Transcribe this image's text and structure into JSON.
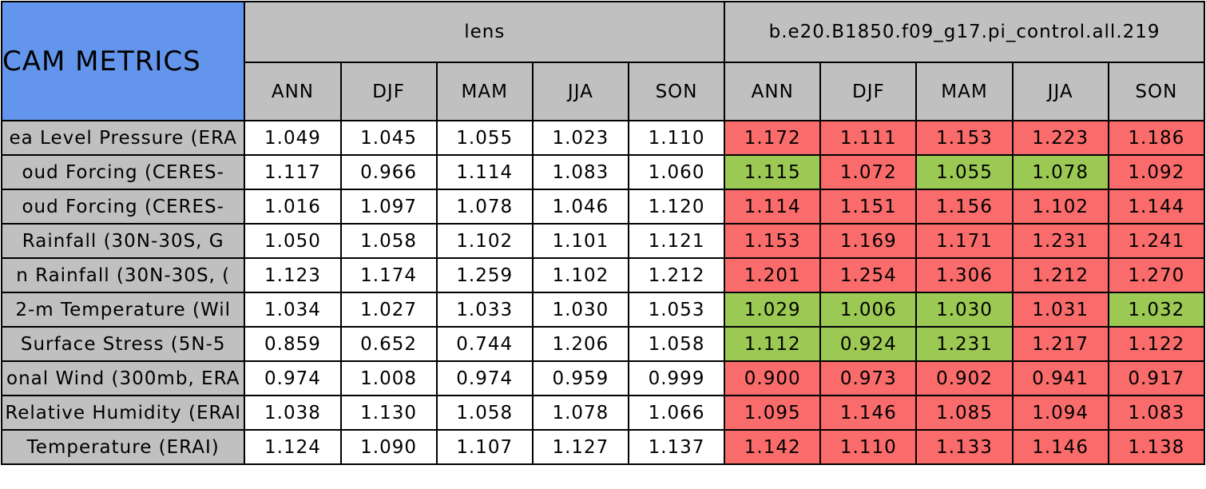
{
  "table": {
    "corner": "CAM METRICS",
    "groups": [
      "lens",
      "b.e20.B1850.f09_g17.pi_control.all.219"
    ],
    "seasons": [
      "ANN",
      "DJF",
      "MAM",
      "JJA",
      "SON",
      "ANN",
      "DJF",
      "MAM",
      "JJA",
      "SON"
    ],
    "palette": {
      "plain": "#ffffff",
      "worse": "#fa6b6b",
      "better": "#9bc953"
    },
    "rows": [
      {
        "label": "ea Level Pressure (ERA",
        "values": [
          "1.049",
          "1.045",
          "1.055",
          "1.023",
          "1.110",
          "1.172",
          "1.111",
          "1.153",
          "1.223",
          "1.186"
        ],
        "colors": [
          "plain",
          "plain",
          "plain",
          "plain",
          "plain",
          "worse",
          "worse",
          "worse",
          "worse",
          "worse"
        ]
      },
      {
        "label": "oud Forcing (CERES-",
        "values": [
          "1.117",
          "0.966",
          "1.114",
          "1.083",
          "1.060",
          "1.115",
          "1.072",
          "1.055",
          "1.078",
          "1.092"
        ],
        "colors": [
          "plain",
          "plain",
          "plain",
          "plain",
          "plain",
          "better",
          "worse",
          "better",
          "better",
          "worse"
        ]
      },
      {
        "label": "oud Forcing (CERES-",
        "values": [
          "1.016",
          "1.097",
          "1.078",
          "1.046",
          "1.120",
          "1.114",
          "1.151",
          "1.156",
          "1.102",
          "1.144"
        ],
        "colors": [
          "plain",
          "plain",
          "plain",
          "plain",
          "plain",
          "worse",
          "worse",
          "worse",
          "worse",
          "worse"
        ]
      },
      {
        "label": "Rainfall (30N-30S, G",
        "values": [
          "1.050",
          "1.058",
          "1.102",
          "1.101",
          "1.121",
          "1.153",
          "1.169",
          "1.171",
          "1.231",
          "1.241"
        ],
        "colors": [
          "plain",
          "plain",
          "plain",
          "plain",
          "plain",
          "worse",
          "worse",
          "worse",
          "worse",
          "worse"
        ]
      },
      {
        "label": "n Rainfall (30N-30S, (",
        "values": [
          "1.123",
          "1.174",
          "1.259",
          "1.102",
          "1.212",
          "1.201",
          "1.254",
          "1.306",
          "1.212",
          "1.270"
        ],
        "colors": [
          "plain",
          "plain",
          "plain",
          "plain",
          "plain",
          "worse",
          "worse",
          "worse",
          "worse",
          "worse"
        ]
      },
      {
        "label": "2-m Temperature (Wil",
        "values": [
          "1.034",
          "1.027",
          "1.033",
          "1.030",
          "1.053",
          "1.029",
          "1.006",
          "1.030",
          "1.031",
          "1.032"
        ],
        "colors": [
          "plain",
          "plain",
          "plain",
          "plain",
          "plain",
          "better",
          "better",
          "better",
          "worse",
          "better"
        ]
      },
      {
        "label": "Surface Stress (5N-5",
        "values": [
          "0.859",
          "0.652",
          "0.744",
          "1.206",
          "1.058",
          "1.112",
          "0.924",
          "1.231",
          "1.217",
          "1.122"
        ],
        "colors": [
          "plain",
          "plain",
          "plain",
          "plain",
          "plain",
          "better",
          "better",
          "better",
          "worse",
          "worse"
        ]
      },
      {
        "label": "onal Wind (300mb, ERA",
        "values": [
          "0.974",
          "1.008",
          "0.974",
          "0.959",
          "0.999",
          "0.900",
          "0.973",
          "0.902",
          "0.941",
          "0.917"
        ],
        "colors": [
          "plain",
          "plain",
          "plain",
          "plain",
          "plain",
          "worse",
          "worse",
          "worse",
          "worse",
          "worse"
        ]
      },
      {
        "label": "Relative Humidity (ERAI",
        "values": [
          "1.038",
          "1.130",
          "1.058",
          "1.078",
          "1.066",
          "1.095",
          "1.146",
          "1.085",
          "1.094",
          "1.083"
        ],
        "colors": [
          "plain",
          "plain",
          "plain",
          "plain",
          "plain",
          "worse",
          "worse",
          "worse",
          "worse",
          "worse"
        ]
      },
      {
        "label": "Temperature (ERAI)",
        "values": [
          "1.124",
          "1.090",
          "1.107",
          "1.127",
          "1.137",
          "1.142",
          "1.110",
          "1.133",
          "1.146",
          "1.138"
        ],
        "colors": [
          "plain",
          "plain",
          "plain",
          "plain",
          "plain",
          "worse",
          "worse",
          "worse",
          "worse",
          "worse"
        ]
      }
    ]
  }
}
